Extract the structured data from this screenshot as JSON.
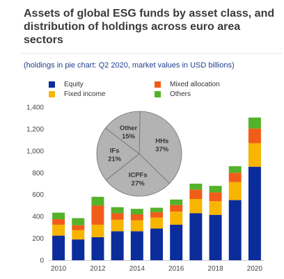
{
  "chart_data": {
    "type": "bar",
    "title": "Assets of global ESG funds by asset class, and distribution of holdings across euro area sectors",
    "subtitle": "(holdings in pie chart: Q2 2020, market values in USD billions)",
    "stacked": true,
    "x": [
      2010,
      2011,
      2012,
      2013,
      2014,
      2015,
      2016,
      2017,
      2018,
      2019,
      2020
    ],
    "xtick_labels": [
      "2010",
      "2012",
      "2014",
      "2016",
      "2018",
      "2020"
    ],
    "ylim": [
      0,
      1400
    ],
    "ytick_labels": [
      "0",
      "200",
      "400",
      "600",
      "800",
      "1,000",
      "1,200",
      "1,400"
    ],
    "grid": false,
    "legend_position": "top-left",
    "series": [
      {
        "name": "Equity",
        "color": "#0b2d9c",
        "values": [
          225,
          190,
          210,
          265,
          265,
          290,
          325,
          430,
          415,
          550,
          855
        ]
      },
      {
        "name": "Fixed income",
        "color": "#f7b500",
        "values": [
          100,
          85,
          115,
          105,
          100,
          100,
          120,
          130,
          125,
          165,
          215
        ]
      },
      {
        "name": "Mixed allocation",
        "color": "#f25c19",
        "values": [
          50,
          45,
          175,
          60,
          55,
          50,
          60,
          85,
          80,
          85,
          135
        ]
      },
      {
        "name": "Others",
        "color": "#54b22a",
        "values": [
          60,
          65,
          80,
          55,
          50,
          40,
          50,
          55,
          60,
          60,
          100
        ]
      }
    ],
    "legend_order": [
      "Equity",
      "Mixed allocation",
      "Fixed income",
      "Others"
    ],
    "pie": {
      "type": "pie",
      "fill": "#b3b3b3",
      "slices": [
        {
          "label": "HHs",
          "value": 37,
          "text": "37%"
        },
        {
          "label": "ICPFs",
          "value": 27,
          "text": "27%"
        },
        {
          "label": "IFs",
          "value": 21,
          "text": "21%"
        },
        {
          "label": "Other",
          "value": 15,
          "text": "15%"
        }
      ]
    }
  }
}
